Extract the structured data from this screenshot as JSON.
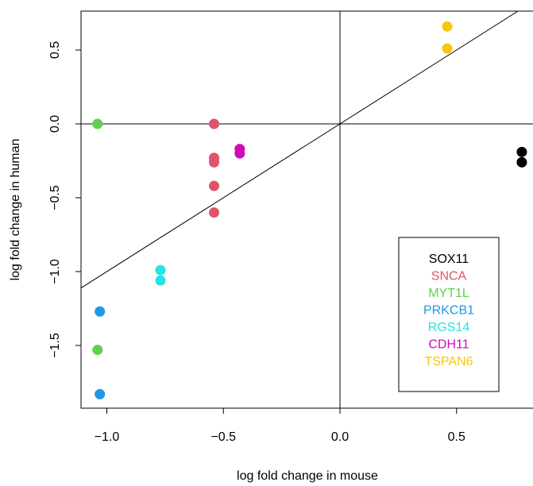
{
  "chart_data": {
    "type": "scatter",
    "title": "",
    "xlabel": "log fold change in mouse",
    "ylabel": "log fold change in human",
    "xlim": [
      -1.1,
      0.83
    ],
    "ylim": [
      -1.94,
      0.76
    ],
    "x_ticks": [
      -1.0,
      -0.5,
      0.0,
      0.5
    ],
    "x_tick_labels": [
      "−1.0",
      "−0.5",
      "0.0",
      "0.5"
    ],
    "y_ticks": [
      -1.5,
      -1.0,
      -0.5,
      0.0,
      0.5
    ],
    "y_tick_labels": [
      "−1.5",
      "−1.0",
      "−0.5",
      "0.0",
      "0.5"
    ],
    "grid": false,
    "reference_lines": [
      {
        "type": "hline",
        "y": 0
      },
      {
        "type": "vline",
        "x": 0
      },
      {
        "type": "abline",
        "intercept": 0,
        "slope": 1
      }
    ],
    "legend_position": "bottom-right",
    "series": [
      {
        "name": "SOX11",
        "color": "#000000",
        "x": [
          0.78,
          0.78
        ],
        "y": [
          -0.19,
          -0.26
        ]
      },
      {
        "name": "SNCA",
        "color": "#DF536B",
        "x": [
          -0.54,
          -0.54,
          -0.54,
          -0.54,
          -0.54
        ],
        "y": [
          0.0,
          -0.23,
          -0.26,
          -0.42,
          -0.6
        ]
      },
      {
        "name": "MYT1L",
        "color": "#61D04F",
        "x": [
          -1.04,
          -1.04
        ],
        "y": [
          0.0,
          -1.53
        ]
      },
      {
        "name": "PRKCB1",
        "color": "#2297E6",
        "x": [
          -1.03,
          -1.03
        ],
        "y": [
          -1.27,
          -1.83
        ]
      },
      {
        "name": "RGS14",
        "color": "#28E2E5",
        "x": [
          -0.77,
          -0.77
        ],
        "y": [
          -0.99,
          -1.06
        ]
      },
      {
        "name": "CDH11",
        "color": "#CD0BBC",
        "x": [
          -0.43,
          -0.43
        ],
        "y": [
          -0.17,
          -0.2
        ]
      },
      {
        "name": "TSPAN6",
        "color": "#F5C710",
        "x": [
          0.46,
          0.46
        ],
        "y": [
          0.66,
          0.51
        ]
      }
    ]
  }
}
